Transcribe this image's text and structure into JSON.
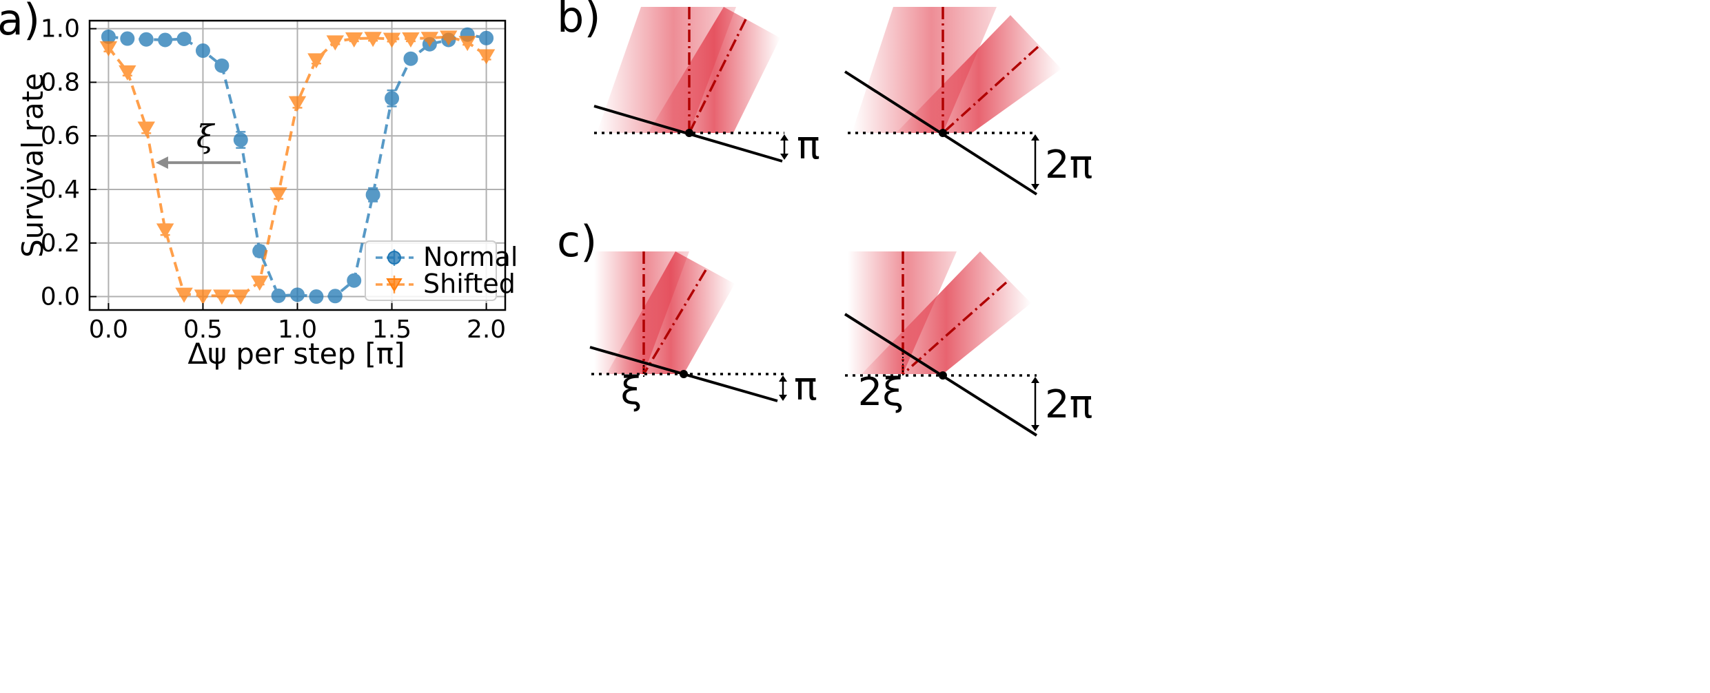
{
  "panel_labels": {
    "a": "a)",
    "b": "b)",
    "c": "c)"
  },
  "chart_data": {
    "type": "line",
    "title": "",
    "xlabel": "Δψ per step [π]",
    "ylabel": "Survival rate",
    "xlim": [
      -0.1,
      2.1
    ],
    "ylim": [
      -0.05,
      1.03
    ],
    "xticks": [
      0.0,
      0.5,
      1.0,
      1.5,
      2.0
    ],
    "xtick_labels": [
      "0.0",
      "0.5",
      "1.0",
      "1.5",
      "2.0"
    ],
    "yticks": [
      0.0,
      0.2,
      0.4,
      0.6,
      0.8,
      1.0
    ],
    "ytick_labels": [
      "0.0",
      "0.2",
      "0.4",
      "0.6",
      "0.8",
      "1.0"
    ],
    "grid": true,
    "legend_position": "lower-right",
    "x": [
      0.0,
      0.1,
      0.2,
      0.3,
      0.4,
      0.5,
      0.6,
      0.7,
      0.8,
      0.9,
      1.0,
      1.1,
      1.2,
      1.3,
      1.4,
      1.5,
      1.6,
      1.7,
      1.8,
      1.9,
      2.0
    ],
    "series": [
      {
        "name": "Normal",
        "color": "#1f77b4",
        "marker": "circle",
        "values": [
          0.97,
          0.963,
          0.96,
          0.958,
          0.962,
          0.918,
          0.862,
          0.585,
          0.17,
          0.003,
          0.007,
          0.0,
          0.002,
          0.06,
          0.38,
          0.74,
          0.888,
          0.942,
          0.958,
          0.978,
          0.965
        ],
        "errors": [
          0.01,
          0.01,
          0.01,
          0.01,
          0.01,
          0.015,
          0.015,
          0.03,
          0.02,
          0.005,
          0.005,
          0.005,
          0.005,
          0.01,
          0.025,
          0.03,
          0.015,
          0.01,
          0.01,
          0.01,
          0.01
        ]
      },
      {
        "name": "Shifted",
        "color": "#ff7f0e",
        "marker": "triangle-down",
        "values": [
          0.93,
          0.84,
          0.63,
          0.25,
          0.01,
          0.003,
          0.003,
          0.003,
          0.055,
          0.385,
          0.725,
          0.885,
          0.952,
          0.963,
          0.965,
          0.962,
          0.963,
          0.965,
          0.97,
          0.95,
          0.9
        ],
        "errors": [
          0.015,
          0.015,
          0.02,
          0.02,
          0.005,
          0.005,
          0.005,
          0.005,
          0.01,
          0.02,
          0.02,
          0.015,
          0.01,
          0.01,
          0.01,
          0.01,
          0.01,
          0.01,
          0.01,
          0.01,
          0.015
        ]
      }
    ],
    "annotations": [
      {
        "text": "ξ",
        "arrow_from": [
          0.7,
          0.5
        ],
        "arrow_to": [
          0.25,
          0.5
        ]
      }
    ]
  },
  "diagrams": {
    "b": [
      {
        "label": "π"
      },
      {
        "label": "2π"
      }
    ],
    "c": [
      {
        "label": "π",
        "shift_label": "ξ"
      },
      {
        "label": "2π",
        "shift_label": "2ξ"
      }
    ]
  }
}
